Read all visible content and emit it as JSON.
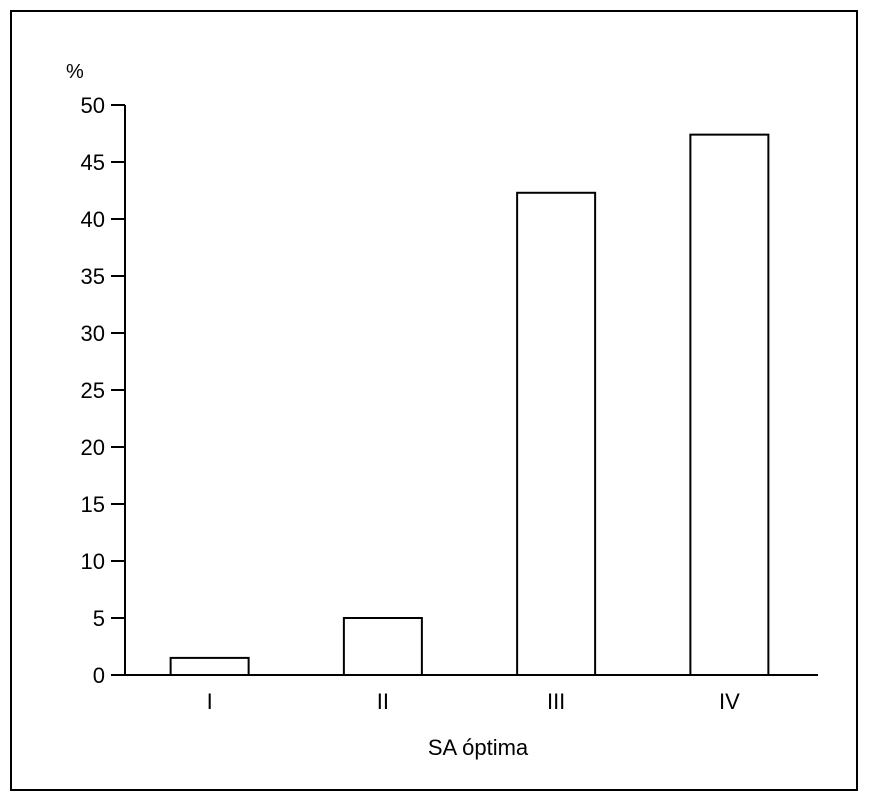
{
  "chart_data": {
    "type": "bar",
    "title": "",
    "ylabel": "%",
    "xlabel": "SA óptima",
    "categories": [
      "I",
      "II",
      "III",
      "IV"
    ],
    "values": [
      1.5,
      5,
      42.3,
      47.4
    ],
    "ylim": [
      0,
      50
    ],
    "yticks": [
      0,
      5,
      10,
      15,
      20,
      25,
      30,
      35,
      40,
      45,
      50
    ],
    "grid": false,
    "legend": "none",
    "colors": {
      "bar_fill": "#ffffff",
      "bar_stroke": "#000000",
      "axis": "#000000"
    }
  }
}
